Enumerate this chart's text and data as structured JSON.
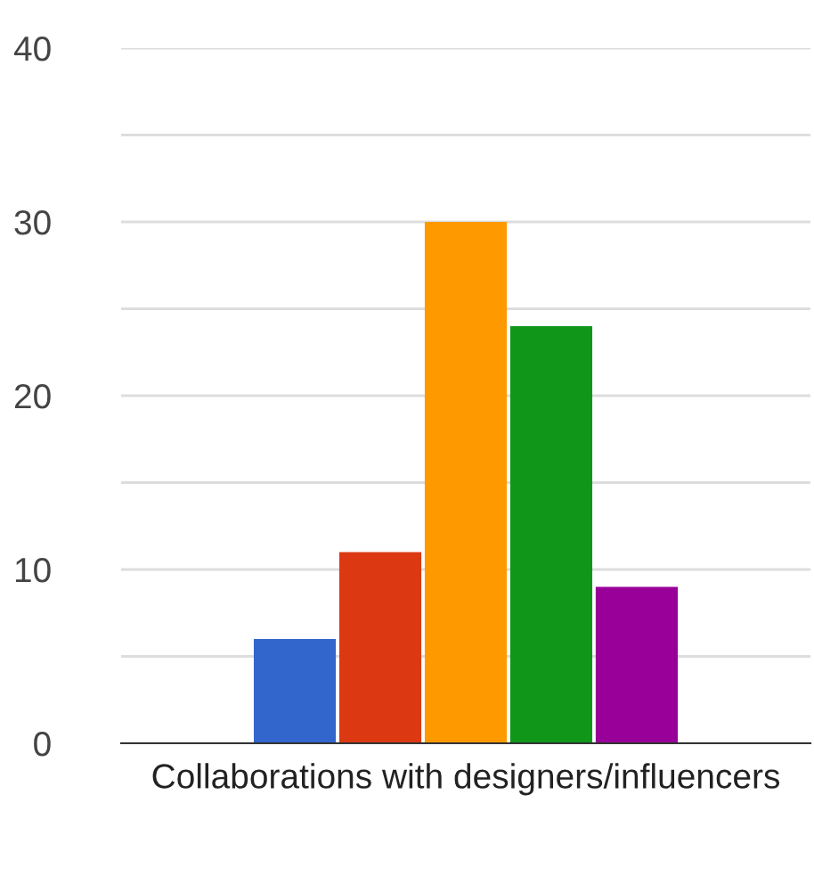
{
  "chart_data": {
    "type": "bar",
    "categories": [
      "Collaborations with designers/influencers"
    ],
    "series": [
      {
        "color": "#3366cc",
        "values": [
          6
        ]
      },
      {
        "color": "#dc3912",
        "values": [
          11
        ]
      },
      {
        "color": "#ff9900",
        "values": [
          30
        ]
      },
      {
        "color": "#109618",
        "values": [
          24
        ]
      },
      {
        "color": "#990099",
        "values": [
          9
        ]
      }
    ],
    "ylim": [
      0,
      40
    ],
    "yticks": [
      0,
      {
        "value": 5,
        "label": null
      },
      10,
      {
        "value": 15,
        "label": null
      },
      20,
      {
        "value": 25,
        "label": null
      },
      30,
      {
        "value": 35,
        "label": null
      },
      40
    ],
    "grid": "y"
  }
}
